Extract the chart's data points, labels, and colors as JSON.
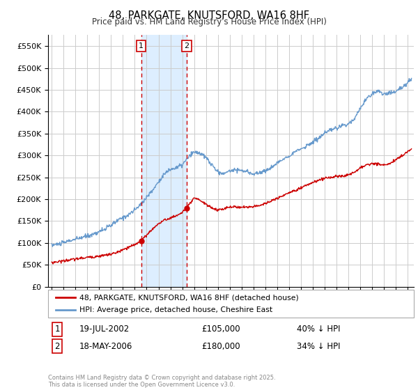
{
  "title": "48, PARKGATE, KNUTSFORD, WA16 8HF",
  "subtitle": "Price paid vs. HM Land Registry's House Price Index (HPI)",
  "background_color": "#ffffff",
  "plot_bg_color": "#ffffff",
  "grid_color": "#cccccc",
  "red_line_color": "#cc0000",
  "blue_line_color": "#6699cc",
  "shade_color": "#ddeeff",
  "marker1_date": 2002.54,
  "marker2_date": 2006.38,
  "transaction1_date": "19-JUL-2002",
  "transaction1_price": "£105,000",
  "transaction1_hpi": "40% ↓ HPI",
  "transaction2_date": "18-MAY-2006",
  "transaction2_price": "£180,000",
  "transaction2_hpi": "34% ↓ HPI",
  "legend_label1": "48, PARKGATE, KNUTSFORD, WA16 8HF (detached house)",
  "legend_label2": "HPI: Average price, detached house, Cheshire East",
  "footer": "Contains HM Land Registry data © Crown copyright and database right 2025.\nThis data is licensed under the Open Government Licence v3.0.",
  "ylim": [
    0,
    575000
  ],
  "xlim_start": 1994.7,
  "xlim_end": 2025.5,
  "hpi_years": [
    1995.0,
    1995.5,
    1996.0,
    1996.5,
    1997.0,
    1997.5,
    1998.0,
    1998.5,
    1999.0,
    1999.5,
    2000.0,
    2000.5,
    2001.0,
    2001.5,
    2002.0,
    2002.5,
    2003.0,
    2003.5,
    2004.0,
    2004.5,
    2005.0,
    2005.5,
    2006.0,
    2006.5,
    2007.0,
    2007.5,
    2008.0,
    2008.5,
    2009.0,
    2009.5,
    2010.0,
    2010.5,
    2011.0,
    2011.5,
    2012.0,
    2012.5,
    2013.0,
    2013.5,
    2014.0,
    2014.5,
    2015.0,
    2015.5,
    2016.0,
    2016.5,
    2017.0,
    2017.5,
    2018.0,
    2018.5,
    2019.0,
    2019.5,
    2020.0,
    2020.5,
    2021.0,
    2021.5,
    2022.0,
    2022.5,
    2023.0,
    2023.5,
    2024.0,
    2024.5,
    2025.3
  ],
  "hpi_prices": [
    95000,
    97000,
    100000,
    105000,
    108000,
    112000,
    116000,
    120000,
    126000,
    132000,
    140000,
    150000,
    158000,
    165000,
    175000,
    188000,
    205000,
    220000,
    240000,
    258000,
    268000,
    272000,
    278000,
    295000,
    308000,
    305000,
    295000,
    278000,
    262000,
    258000,
    265000,
    268000,
    265000,
    262000,
    258000,
    260000,
    265000,
    272000,
    282000,
    292000,
    300000,
    308000,
    315000,
    322000,
    330000,
    340000,
    350000,
    358000,
    362000,
    368000,
    372000,
    385000,
    408000,
    428000,
    442000,
    448000,
    440000,
    442000,
    448000,
    455000,
    475000
  ],
  "red_years": [
    1995.0,
    1995.5,
    1996.0,
    1996.5,
    1997.0,
    1997.5,
    1998.0,
    1998.5,
    1999.0,
    1999.5,
    2000.0,
    2000.5,
    2001.0,
    2001.5,
    2002.0,
    2002.54,
    2003.0,
    2003.5,
    2004.0,
    2004.5,
    2005.0,
    2005.5,
    2006.0,
    2006.38,
    2006.8,
    2007.0,
    2007.5,
    2008.0,
    2008.5,
    2009.0,
    2009.5,
    2010.0,
    2010.5,
    2011.0,
    2011.5,
    2012.0,
    2012.5,
    2013.0,
    2013.5,
    2014.0,
    2014.5,
    2015.0,
    2015.5,
    2016.0,
    2016.5,
    2017.0,
    2017.5,
    2018.0,
    2018.5,
    2019.0,
    2019.5,
    2020.0,
    2020.5,
    2021.0,
    2021.5,
    2022.0,
    2022.5,
    2023.0,
    2023.5,
    2024.0,
    2024.5,
    2025.3
  ],
  "red_prices": [
    55000,
    57000,
    59000,
    61000,
    63000,
    65000,
    67000,
    68000,
    70000,
    72000,
    74000,
    78000,
    84000,
    90000,
    96000,
    105000,
    118000,
    132000,
    144000,
    152000,
    157000,
    162000,
    170000,
    180000,
    195000,
    202000,
    198000,
    188000,
    180000,
    175000,
    178000,
    182000,
    182000,
    182000,
    182000,
    183000,
    186000,
    190000,
    196000,
    202000,
    208000,
    215000,
    220000,
    226000,
    232000,
    238000,
    243000,
    248000,
    250000,
    252000,
    253000,
    255000,
    262000,
    272000,
    278000,
    282000,
    280000,
    278000,
    282000,
    290000,
    300000,
    315000
  ]
}
